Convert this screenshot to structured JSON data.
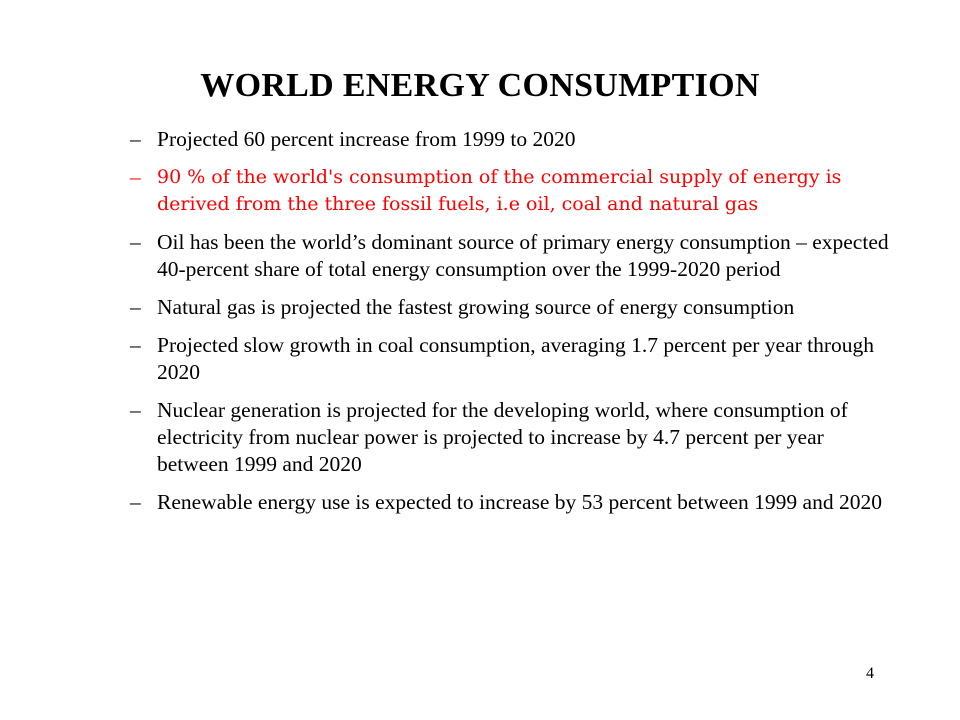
{
  "slide": {
    "title": "WORLD ENERGY CONSUMPTION",
    "bullet_marker": "–",
    "bullets": [
      {
        "text": "Projected  60 percent increase  from 1999 to 2020",
        "color": "#000000"
      },
      {
        "text": "90 % of the world's consumption of the commercial supply of energy is derived from the three fossil fuels, i.e oil, coal and natural gas",
        "color": "#ff0000"
      },
      {
        "text": "Oil has been the world’s dominant source of primary energy consumption – expected  40-percent share of total energy consumption over the 1999-2020 period",
        "color": "#000000"
      },
      {
        "text": "Natural gas is projected the fastest growing source of energy consumption",
        "color": "#000000"
      },
      {
        "text": "Projected slow growth in coal consumption, averaging 1.7 percent per year through 2020",
        "color": "#000000"
      },
      {
        "text": "Nuclear generation is projected for the developing world, where consumption of electricity from nuclear power is projected to increase by 4.7 percent per year between 1999 and 2020",
        "color": "#000000"
      },
      {
        "text": "Renewable energy use is expected to increase by 53 percent between 1999 and 2020",
        "color": "#000000"
      }
    ],
    "page_number": "4"
  }
}
